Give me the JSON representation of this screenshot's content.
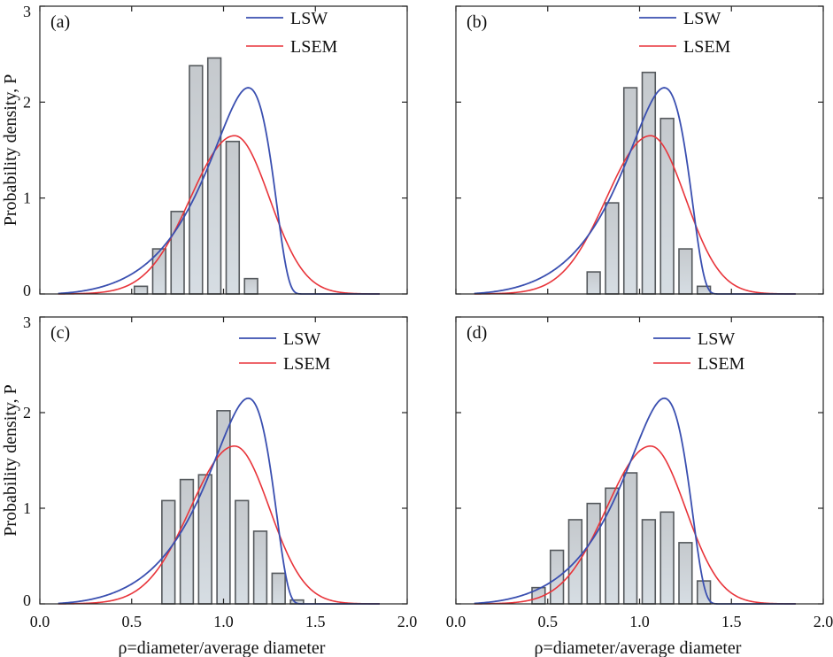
{
  "chart_data": [
    {
      "type": "bar",
      "panel_label": "(a)",
      "bin_width": 0.1,
      "bins": [
        0.55,
        0.65,
        0.75,
        0.85,
        0.95,
        1.05,
        1.15,
        1.25,
        1.35
      ],
      "values": [
        0.08,
        0.47,
        0.86,
        2.38,
        2.46,
        1.59,
        0.16,
        0,
        0
      ],
      "series": [
        {
          "name": "LSW"
        },
        {
          "name": "LSEM"
        }
      ],
      "xlim": [
        0,
        2.0
      ],
      "ylim": [
        0,
        3
      ],
      "show_xticklabels": false,
      "show_ylabel": true,
      "show_xlabel": false
    },
    {
      "type": "bar",
      "panel_label": "(b)",
      "bin_width": 0.1,
      "bins": [
        0.75,
        0.85,
        0.95,
        1.05,
        1.15,
        1.25,
        1.35,
        1.45
      ],
      "values": [
        0.23,
        0.95,
        2.15,
        2.31,
        1.83,
        0.47,
        0.08,
        0
      ],
      "series": [
        {
          "name": "LSW"
        },
        {
          "name": "LSEM"
        }
      ],
      "xlim": [
        0,
        2.0
      ],
      "ylim": [
        0,
        3
      ],
      "show_xticklabels": false,
      "show_ylabel": false,
      "show_xlabel": false
    },
    {
      "type": "bar",
      "panel_label": "(c)",
      "bin_width": 0.1,
      "bins": [
        0.7,
        0.8,
        0.9,
        1.0,
        1.1,
        1.2,
        1.3,
        1.4,
        1.5
      ],
      "values": [
        1.08,
        1.3,
        1.35,
        2.02,
        1.08,
        0.76,
        0.32,
        0.04,
        0
      ],
      "series": [
        {
          "name": "LSW"
        },
        {
          "name": "LSEM"
        }
      ],
      "xlim": [
        0,
        2.0
      ],
      "ylim": [
        0,
        3
      ],
      "show_xticklabels": true,
      "show_ylabel": true,
      "show_xlabel": true
    },
    {
      "type": "bar",
      "panel_label": "(d)",
      "bin_width": 0.1,
      "bins": [
        0.45,
        0.55,
        0.65,
        0.75,
        0.85,
        0.95,
        1.05,
        1.15,
        1.25,
        1.35,
        1.45
      ],
      "values": [
        0.17,
        0.56,
        0.88,
        1.05,
        1.21,
        1.37,
        0.88,
        0.96,
        0.64,
        0.24,
        0
      ],
      "series": [
        {
          "name": "LSW"
        },
        {
          "name": "LSEM"
        }
      ],
      "xlim": [
        0,
        2.0
      ],
      "ylim": [
        0,
        3
      ],
      "show_xticklabels": true,
      "show_ylabel": false,
      "show_xlabel": true
    }
  ],
  "legend": {
    "lsw": "LSW",
    "lsem": "LSEM"
  },
  "ylabel": "Probability density, P",
  "xlabel": "ρ=diameter/average diameter",
  "xticks": [
    "0.0",
    "0.5",
    "1.0",
    "1.5",
    "2.0"
  ],
  "yticks": [
    "0",
    "1",
    "2",
    "3"
  ],
  "colors": {
    "lsw": "#3a4fb0",
    "lsem": "#e8343a",
    "bar_fill_top": "#c5c9cd",
    "bar_fill_bottom": "#d6dde3",
    "bar_stroke": "#55595d",
    "axis": "#222222"
  }
}
